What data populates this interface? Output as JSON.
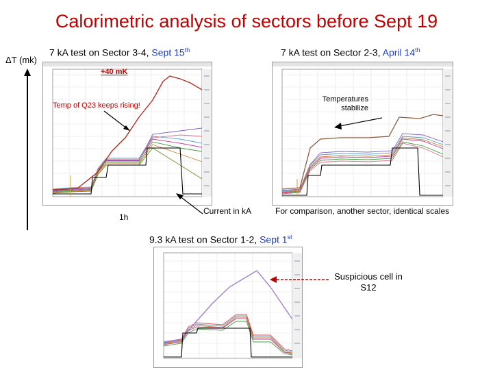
{
  "slide": {
    "title": "Calorimetric analysis of sectors before Sept 19",
    "y_axis_label": "ΔT (mk)",
    "scale_note": "1h"
  },
  "panel_sector_34": {
    "heading_prefix": "7 kA test on Sector 3-4, ",
    "heading_date": "Sept 15",
    "heading_sup": "th",
    "annotation_delta": "+40 mK",
    "annotation_text": "Temp of Q23 keeps rising!",
    "caption": "Current in kA"
  },
  "panel_sector_23": {
    "heading_prefix": "7 kA test on Sector 2-3, ",
    "heading_date": "April 14",
    "heading_sup": "th",
    "annotation_text": "Temperatures stabilize",
    "caption": "For comparison, another sector, identical scales"
  },
  "panel_sector_12": {
    "heading_prefix": "9.3 kA test on Sector 1-2, ",
    "heading_date": "Sept 1",
    "heading_sup": "st",
    "annotation_text": "Suspicious cell in S12"
  },
  "colors": {
    "title": "#c00000",
    "accent_blue": "#1a3cc8",
    "current_trace": "#000000",
    "suspicious_trace": "#a080d0",
    "rising_trace": "#b03020"
  }
}
